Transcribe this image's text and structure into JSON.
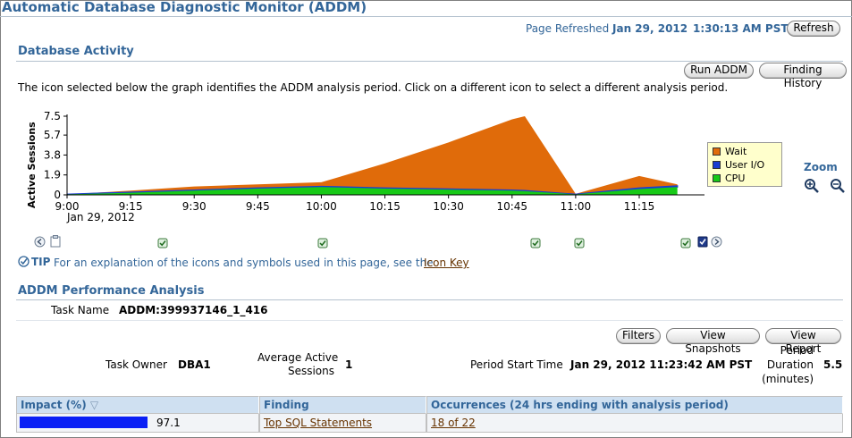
{
  "header": {
    "title": "Automatic Database Diagnostic Monitor (ADDM)",
    "refreshed_label": "Page Refreshed",
    "refreshed_date": "Jan 29, 2012",
    "refreshed_time": "1:30:13 AM PST",
    "refresh_button": "Refresh"
  },
  "activity": {
    "heading": "Database Activity",
    "run_addm_button": "Run ADDM",
    "finding_history_button": "Finding History",
    "instruction": "The icon selected below the graph identifies the ADDM analysis period. Click on a different icon to select a different analysis period.",
    "zoom_label": "Zoom"
  },
  "chart_data": {
    "type": "area",
    "ylabel": "Active Sessions",
    "ylim": [
      0,
      7.5
    ],
    "y_ticks": [
      "7.5",
      "5.7",
      "3.8",
      "1.9",
      "0"
    ],
    "x_ticks": [
      "9:00",
      "9:15",
      "9:30",
      "9:45",
      "10:00",
      "10:15",
      "10:30",
      "10:45",
      "11:00",
      "11:15"
    ],
    "x_sub_label": "Jan 29, 2012",
    "x_minutes": [
      0,
      15,
      30,
      45,
      60,
      75,
      90,
      105,
      108,
      120,
      135,
      144
    ],
    "series": [
      {
        "name": "Wait",
        "color": "#e06b0a",
        "values": [
          0.05,
          0.4,
          0.8,
          1.0,
          1.2,
          3.0,
          5.0,
          7.2,
          7.5,
          0.1,
          1.8,
          1.0
        ]
      },
      {
        "name": "User I/O",
        "color": "#1a3cd1",
        "values": [
          0.0,
          0.05,
          0.05,
          0.05,
          0.05,
          0.05,
          0.05,
          0.05,
          0.05,
          0.0,
          0.1,
          0.1
        ]
      },
      {
        "name": "CPU",
        "color": "#17c917",
        "values": [
          0.05,
          0.2,
          0.4,
          0.6,
          0.75,
          0.6,
          0.5,
          0.4,
          0.35,
          0.05,
          0.55,
          0.75
        ]
      }
    ],
    "legend": "right"
  },
  "tip": {
    "label": "TIP",
    "text": "For an explanation of the icons and symbols used in this page, see the",
    "link": "Icon Key"
  },
  "performance": {
    "heading": "ADDM Performance Analysis",
    "task_name_label": "Task Name",
    "task_name_value": "ADDM:399937146_1_416",
    "filters_button": "Filters",
    "view_snapshots_button": "View Snapshots",
    "view_report_button": "View Report",
    "task_owner_label": "Task Owner",
    "task_owner_value": "DBA1",
    "avg_sessions_label_1": "Average Active",
    "avg_sessions_label_2": "Sessions",
    "avg_sessions_value": "1",
    "period_start_label": "Period Start Time",
    "period_start_value": "Jan 29, 2012 11:23:42 AM PST",
    "period_duration_label_1": "Period",
    "period_duration_label_2": "Duration",
    "period_duration_label_3": "(minutes)",
    "period_duration_value": "5.5"
  },
  "table": {
    "headers": [
      "Impact (%)",
      "Finding",
      "Occurrences (24 hrs ending with analysis period)"
    ],
    "rows": [
      {
        "impact": "97.1",
        "impact_fraction": 0.971,
        "finding": "Top SQL Statements",
        "occurrences": "18 of 22"
      }
    ]
  }
}
